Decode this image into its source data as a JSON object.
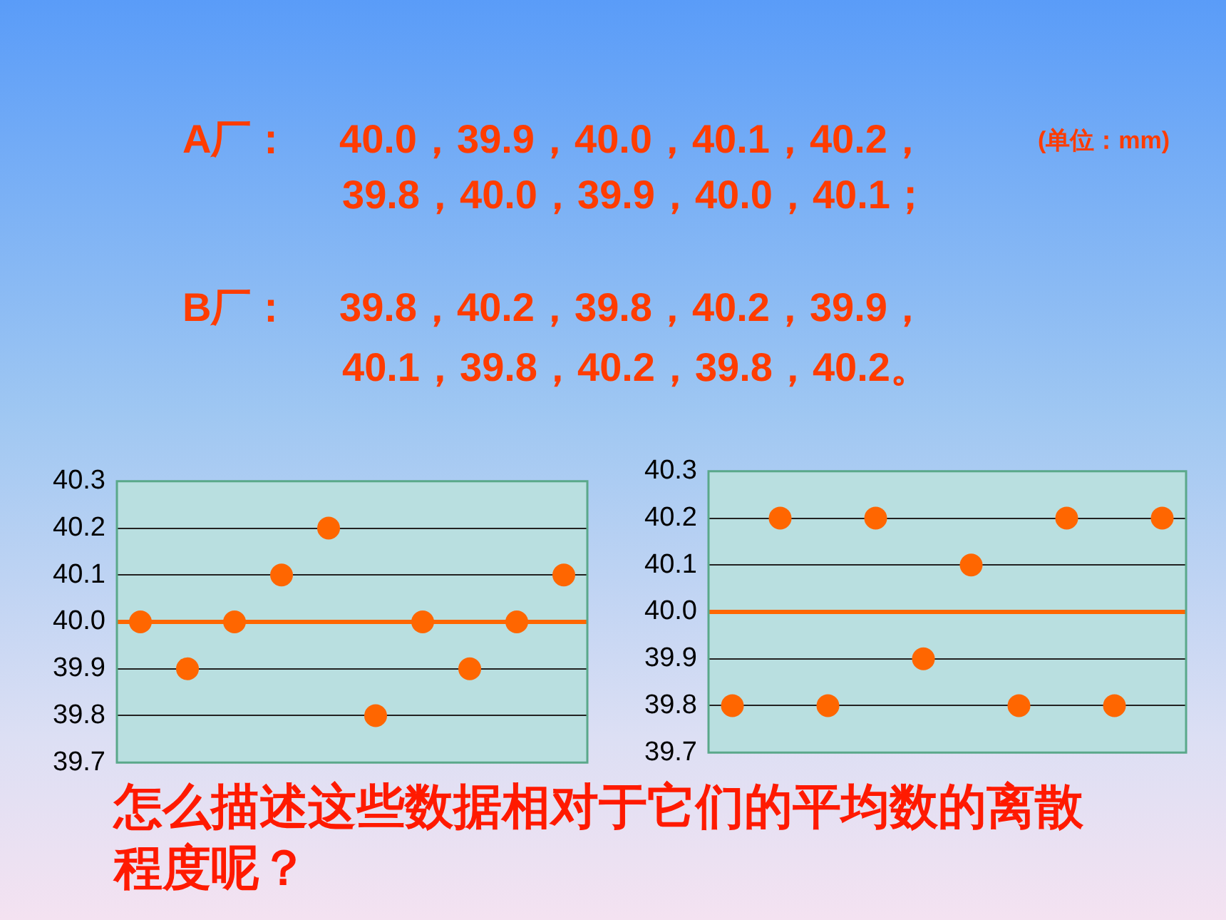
{
  "chart_data": [
    {
      "type": "scatter",
      "categories": [
        null,
        null,
        null,
        null,
        null,
        null,
        null,
        null,
        null,
        null
      ],
      "series": [
        {
          "color": "#ff6600",
          "values": [
            40.0,
            39.9,
            40.0,
            40.1,
            40.2,
            39.8,
            40.0,
            39.9,
            40.0,
            40.1
          ]
        }
      ],
      "ylim": [
        39.7,
        40.3
      ],
      "yticks": [
        39.7,
        39.8,
        39.9,
        {
          "value": 40.0,
          "label": "40.0"
        },
        40.1,
        40.2,
        40.3
      ],
      "grid": "y",
      "legend": false,
      "tick_labels": "y",
      "marker": "circle",
      "ref_lines": [
        {
          "axis": "y",
          "value": 40.0,
          "color": "#ff6600"
        }
      ],
      "annotations": [
        "A厂：",
        "40.0，39.9，40.0，40.1，40.2，",
        "(单位：mm)",
        "39.8，40.0，39.9，40.0，40.1；",
        "B厂：",
        "39.8，40.2，39.8，40.2，39.9，",
        "40.1，39.8，40.2，39.8，40.2。"
      ]
    },
    {
      "type": "scatter",
      "categories": [
        null,
        null,
        null,
        null,
        null,
        null,
        null,
        null,
        null,
        null
      ],
      "series": [
        {
          "color": "#ff6600",
          "values": [
            39.8,
            40.2,
            39.8,
            40.2,
            39.9,
            40.1,
            39.8,
            40.2,
            39.8,
            40.2
          ]
        }
      ],
      "ylim": [
        39.7,
        40.3
      ],
      "yticks": [
        39.7,
        39.8,
        39.9,
        {
          "value": 40.0,
          "label": "40.0"
        },
        40.1,
        40.2,
        40.3
      ],
      "grid": "y",
      "legend": false,
      "tick_labels": "y",
      "marker": "circle",
      "ref_lines": [
        {
          "axis": "y",
          "value": 40.0,
          "color": "#ff6600"
        }
      ],
      "annotations": [
        "怎么描述这些数据相对于它们的平均数的离散程度呢？"
      ]
    }
  ]
}
